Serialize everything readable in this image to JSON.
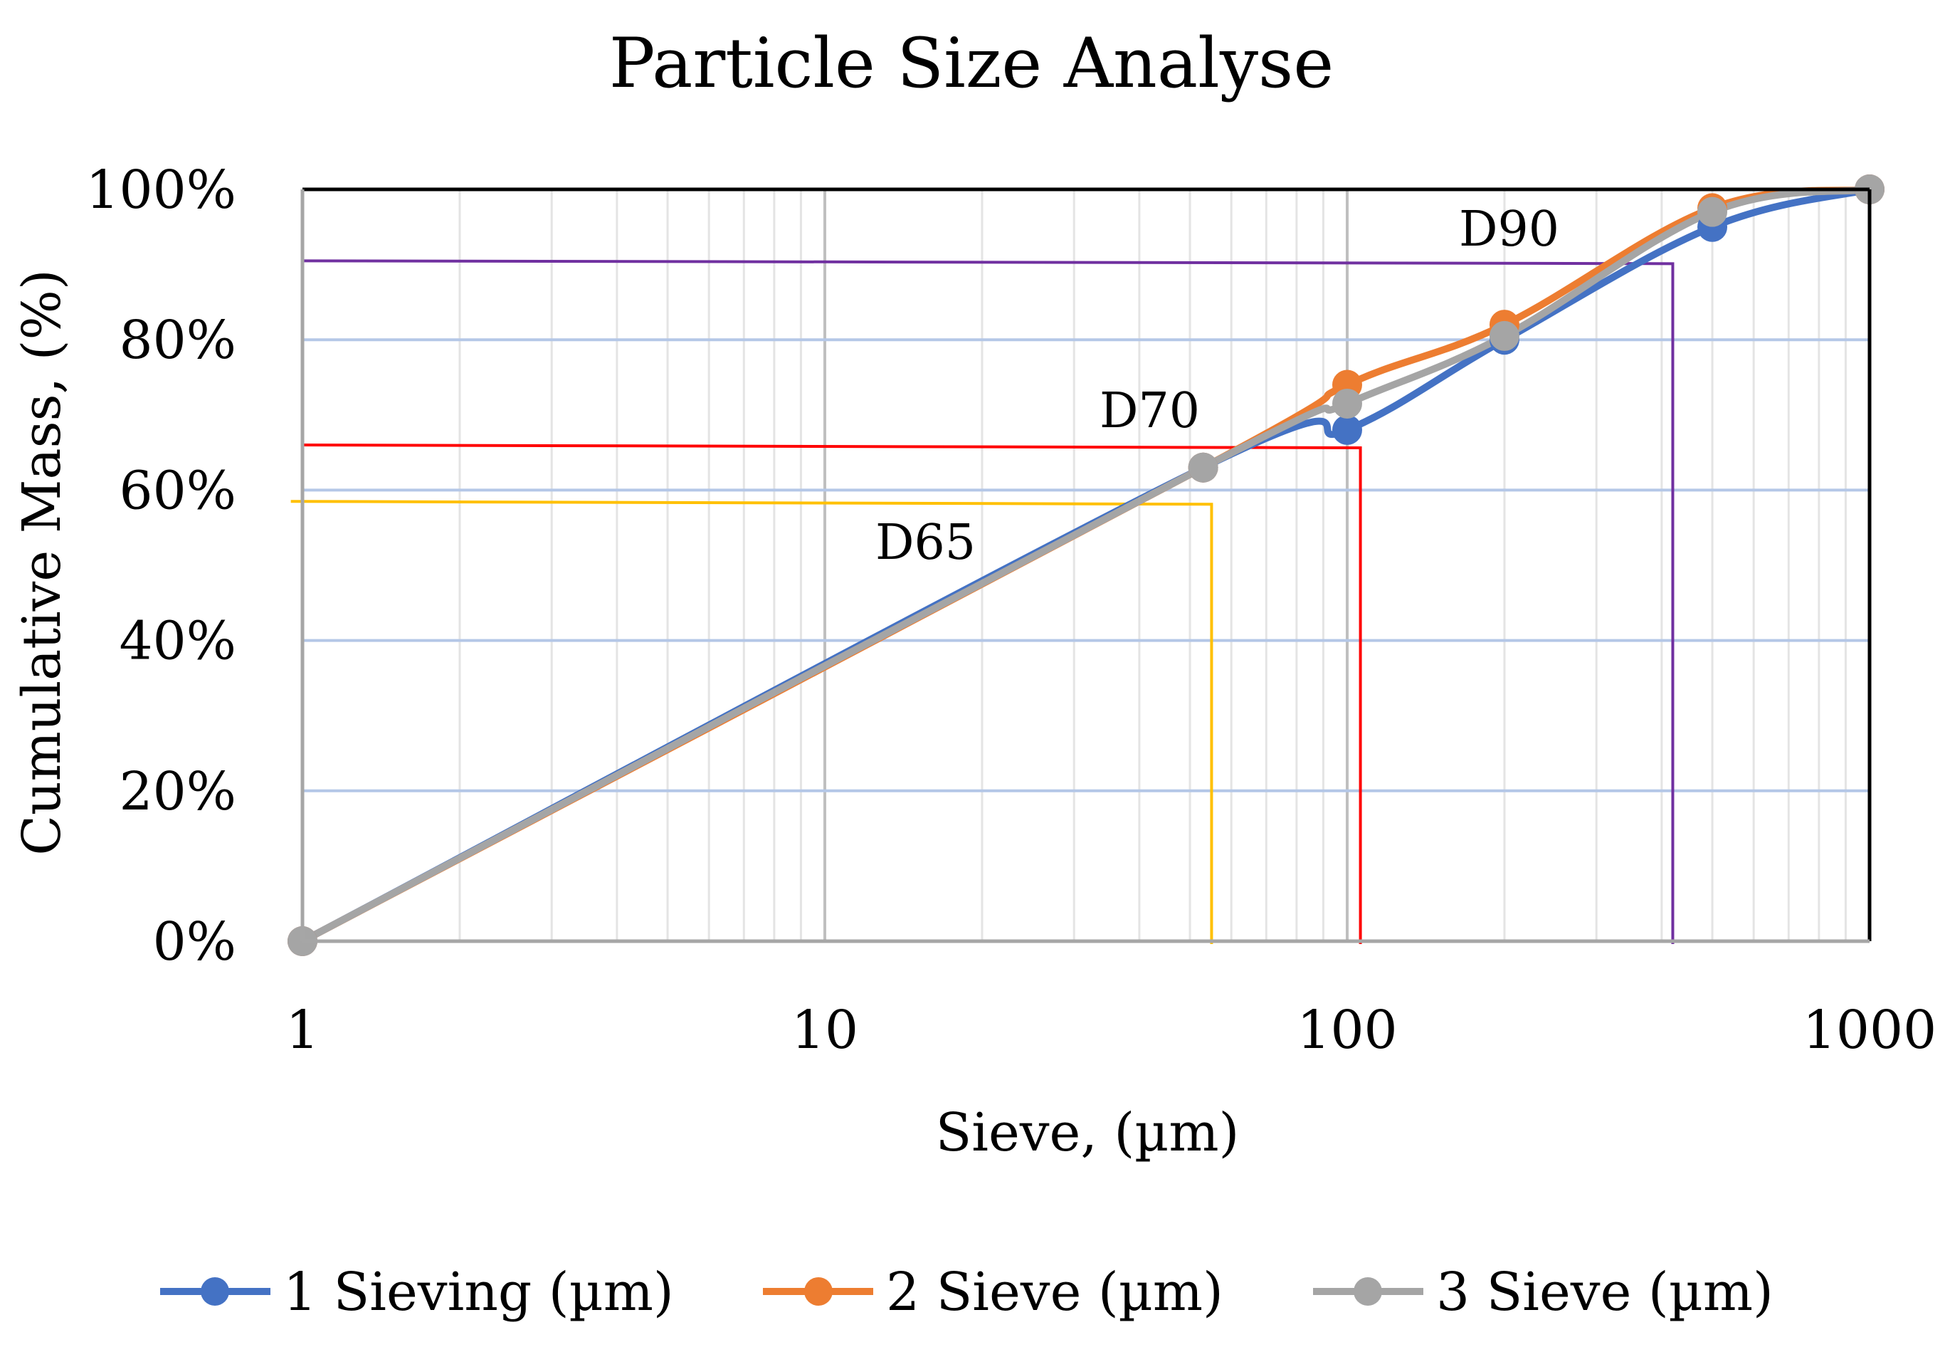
{
  "chart_data": {
    "type": "line",
    "title": "Particle Size Analyse",
    "xlabel": "Sieve, (µm)",
    "ylabel": "Cumulative Mass, (%)",
    "x_scale": "log",
    "xlim": [
      1,
      1000
    ],
    "ylim": [
      0,
      100
    ],
    "x_ticks": [
      1,
      10,
      100,
      1000
    ],
    "x_tick_labels": [
      "1",
      "10",
      "100",
      "1000"
    ],
    "y_ticks": [
      0,
      20,
      40,
      60,
      80,
      100
    ],
    "y_tick_labels": [
      "0%",
      "20%",
      "40%",
      "60%",
      "80%",
      "100%"
    ],
    "grid": true,
    "legend_position": "bottom",
    "series": [
      {
        "name": "1 Sieving (µm)",
        "color": "#4472C4",
        "x": [
          1,
          53,
          100,
          200,
          500,
          1000
        ],
        "y": [
          0,
          63,
          68,
          80,
          95,
          100
        ]
      },
      {
        "name": "2 Sieve (µm)",
        "color": "#ED7D31",
        "x": [
          1,
          53,
          100,
          200,
          500,
          1000
        ],
        "y": [
          0,
          63,
          74,
          82,
          97.5,
          100
        ]
      },
      {
        "name": "3 Sieve (µm)",
        "color": "#A5A5A5",
        "x": [
          1,
          53,
          100,
          200,
          500,
          1000
        ],
        "y": [
          0,
          63,
          71.5,
          80.5,
          97,
          100
        ]
      }
    ],
    "reference_lines": [
      {
        "label": "D65",
        "color": "#FFC000",
        "x": 55,
        "y": 58.5
      },
      {
        "label": "D70",
        "color": "#FF0000",
        "x": 106,
        "y": 66
      },
      {
        "label": "D90",
        "color": "#7030A0",
        "x": 420,
        "y": 90.5
      }
    ]
  }
}
